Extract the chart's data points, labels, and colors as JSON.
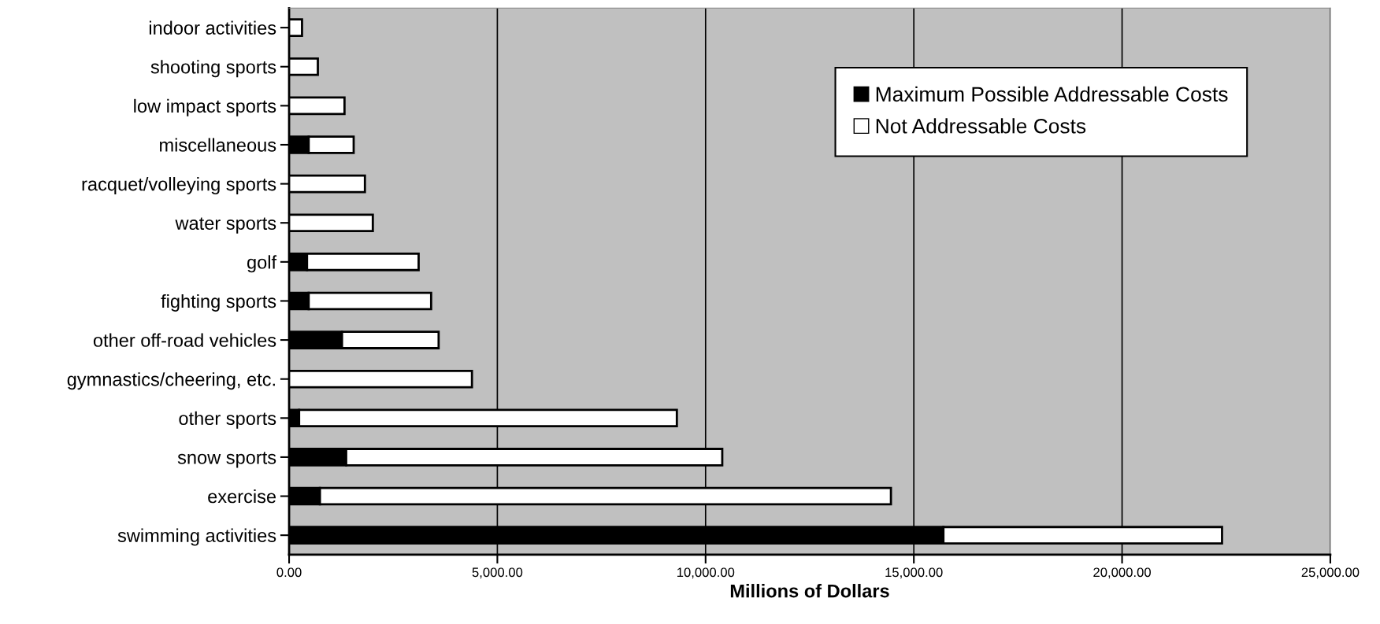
{
  "chart_data": {
    "type": "bar",
    "orientation": "horizontal",
    "stacked": true,
    "xlabel": "Millions of Dollars",
    "categories": [
      "indoor activities",
      "shooting sports",
      "low impact sports",
      "miscellaneous",
      "racquet/volleying sports",
      "water sports",
      "golf",
      "fighting sports",
      "other off-road vehicles",
      "gymnastics/cheering, etc.",
      "other sports",
      "snow sports",
      "exercise",
      "swimming activities"
    ],
    "series": [
      {
        "name": "Maximum Possible Addressable Costs",
        "color": "#000000",
        "values": [
          0,
          0,
          0,
          470,
          0,
          0,
          430,
          470,
          1270,
          0,
          240,
          1370,
          740,
          15710
        ]
      },
      {
        "name": "Not Addressable Costs",
        "color": "#ffffff",
        "values": [
          310,
          690,
          1330,
          1080,
          1820,
          2010,
          2680,
          2940,
          2320,
          4390,
          9070,
          9030,
          13710,
          6690
        ]
      }
    ],
    "xlim": [
      0,
      25000
    ],
    "xticks": [
      {
        "value": 0,
        "label": "0.00"
      },
      {
        "value": 5000,
        "label": "5,000.00"
      },
      {
        "value": 10000,
        "label": "10,000.00"
      },
      {
        "value": 15000,
        "label": "15,000.00"
      },
      {
        "value": 20000,
        "label": "20,000.00"
      },
      {
        "value": 25000,
        "label": "25,000.00"
      }
    ],
    "grid": "x",
    "legend": "top right"
  }
}
